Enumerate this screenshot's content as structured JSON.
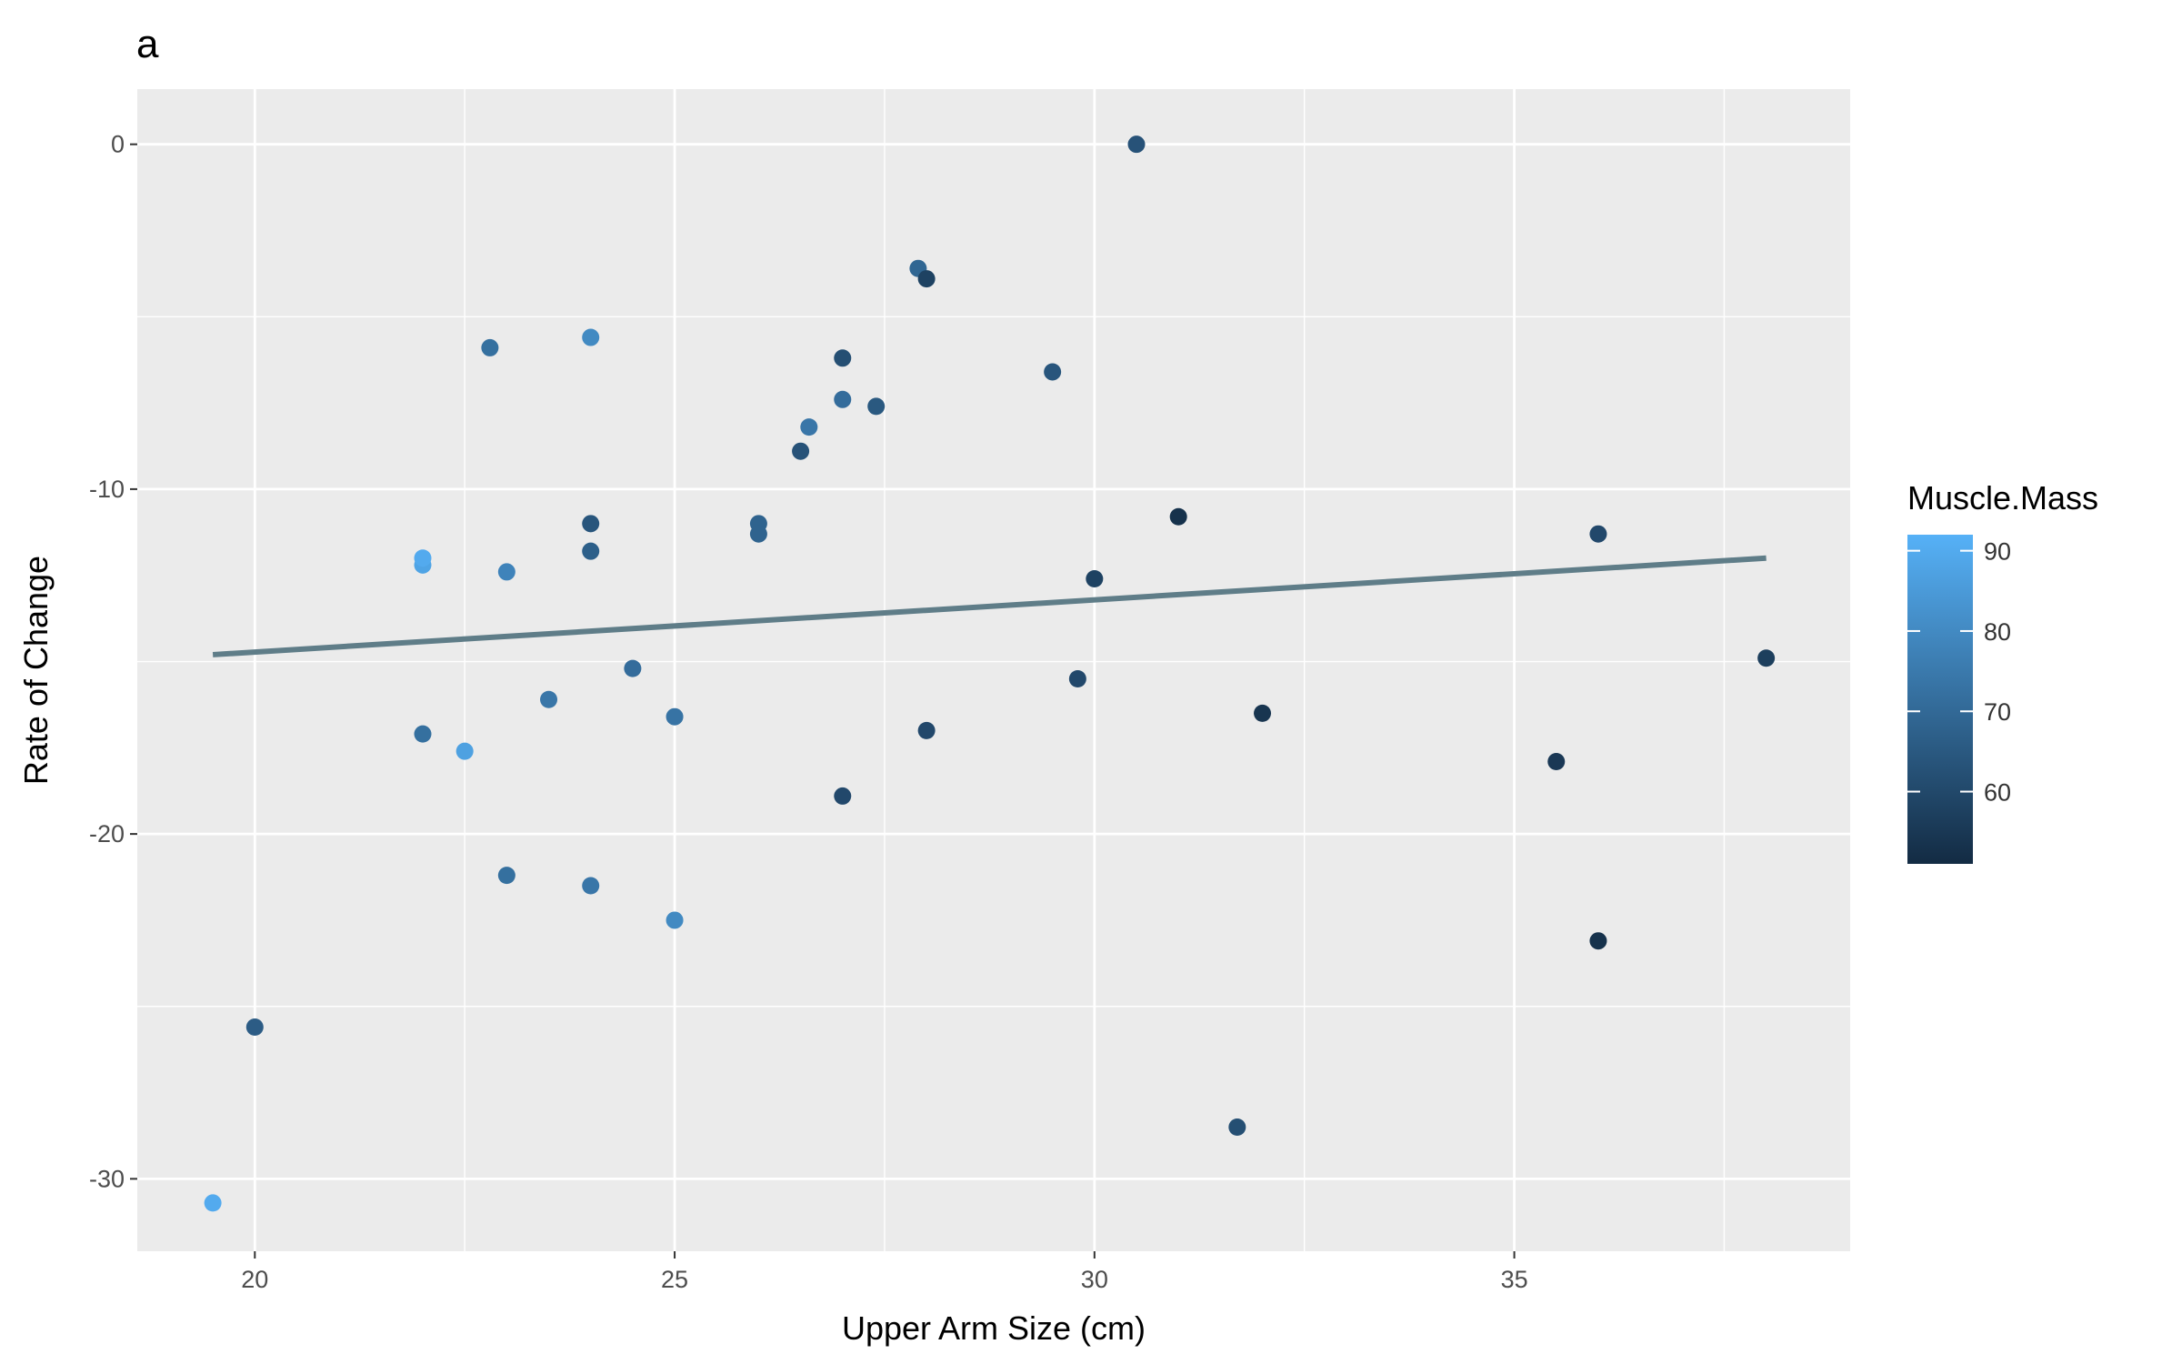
{
  "chart_data": {
    "type": "scatter",
    "title": "a",
    "xlabel": "Upper Arm Size (cm)",
    "ylabel": "Rate of Change",
    "xlim": [
      18.6,
      39.0
    ],
    "ylim": [
      -32.1,
      1.6
    ],
    "x_ticks": [
      20,
      25,
      30,
      35
    ],
    "x_tick_labels": [
      "20",
      "25",
      "30",
      "35"
    ],
    "y_ticks": [
      0,
      -10,
      -20,
      -30
    ],
    "y_tick_labels": [
      "0",
      "-10",
      "-20",
      "-30"
    ],
    "grid": true,
    "color_scale": {
      "name": "Muscle.Mass",
      "low_color": "#132b43",
      "high_color": "#56b1f7",
      "range": [
        51,
        92
      ],
      "ticks": [
        90,
        80,
        70,
        60
      ],
      "tick_labels": [
        "90",
        "80",
        "70",
        "60"
      ],
      "legend_position": "right"
    },
    "trend_line": {
      "color": "#5f7d88",
      "x": [
        19.5,
        38.0
      ],
      "y": [
        -14.8,
        -12.0
      ]
    },
    "points": [
      {
        "x": 19.5,
        "y": -30.7,
        "mass": 90
      },
      {
        "x": 20.0,
        "y": -25.6,
        "mass": 66
      },
      {
        "x": 22.0,
        "y": -12.2,
        "mass": 88
      },
      {
        "x": 22.0,
        "y": -12.0,
        "mass": 90
      },
      {
        "x": 22.0,
        "y": -17.1,
        "mass": 72
      },
      {
        "x": 22.5,
        "y": -17.6,
        "mass": 87
      },
      {
        "x": 22.8,
        "y": -5.9,
        "mass": 72
      },
      {
        "x": 23.0,
        "y": -12.4,
        "mass": 78
      },
      {
        "x": 23.0,
        "y": -21.2,
        "mass": 72
      },
      {
        "x": 23.5,
        "y": -16.1,
        "mass": 74
      },
      {
        "x": 24.0,
        "y": -5.6,
        "mass": 80
      },
      {
        "x": 24.0,
        "y": -11.0,
        "mass": 64
      },
      {
        "x": 24.0,
        "y": -11.8,
        "mass": 67
      },
      {
        "x": 24.0,
        "y": -21.5,
        "mass": 74
      },
      {
        "x": 24.5,
        "y": -15.2,
        "mass": 71
      },
      {
        "x": 25.0,
        "y": -16.6,
        "mass": 73
      },
      {
        "x": 25.0,
        "y": -22.5,
        "mass": 80
      },
      {
        "x": 26.0,
        "y": -11.0,
        "mass": 68
      },
      {
        "x": 26.0,
        "y": -11.3,
        "mass": 68
      },
      {
        "x": 26.5,
        "y": -8.9,
        "mass": 63
      },
      {
        "x": 26.6,
        "y": -8.2,
        "mass": 74
      },
      {
        "x": 27.0,
        "y": -6.2,
        "mass": 62
      },
      {
        "x": 27.0,
        "y": -7.4,
        "mass": 71
      },
      {
        "x": 27.0,
        "y": -18.9,
        "mass": 60
      },
      {
        "x": 27.4,
        "y": -7.6,
        "mass": 65
      },
      {
        "x": 27.9,
        "y": -3.6,
        "mass": 69
      },
      {
        "x": 28.0,
        "y": -3.9,
        "mass": 58
      },
      {
        "x": 28.0,
        "y": -17.0,
        "mass": 60
      },
      {
        "x": 29.5,
        "y": -6.6,
        "mass": 64
      },
      {
        "x": 29.8,
        "y": -15.5,
        "mass": 60
      },
      {
        "x": 30.0,
        "y": -12.6,
        "mass": 58
      },
      {
        "x": 30.5,
        "y": 0.0,
        "mass": 63
      },
      {
        "x": 31.0,
        "y": -10.8,
        "mass": 53
      },
      {
        "x": 31.7,
        "y": -28.5,
        "mass": 62
      },
      {
        "x": 32.0,
        "y": -16.5,
        "mass": 54
      },
      {
        "x": 35.5,
        "y": -17.9,
        "mass": 55
      },
      {
        "x": 36.0,
        "y": -11.3,
        "mass": 60
      },
      {
        "x": 36.0,
        "y": -23.1,
        "mass": 53
      },
      {
        "x": 38.0,
        "y": -14.9,
        "mass": 57
      }
    ]
  }
}
